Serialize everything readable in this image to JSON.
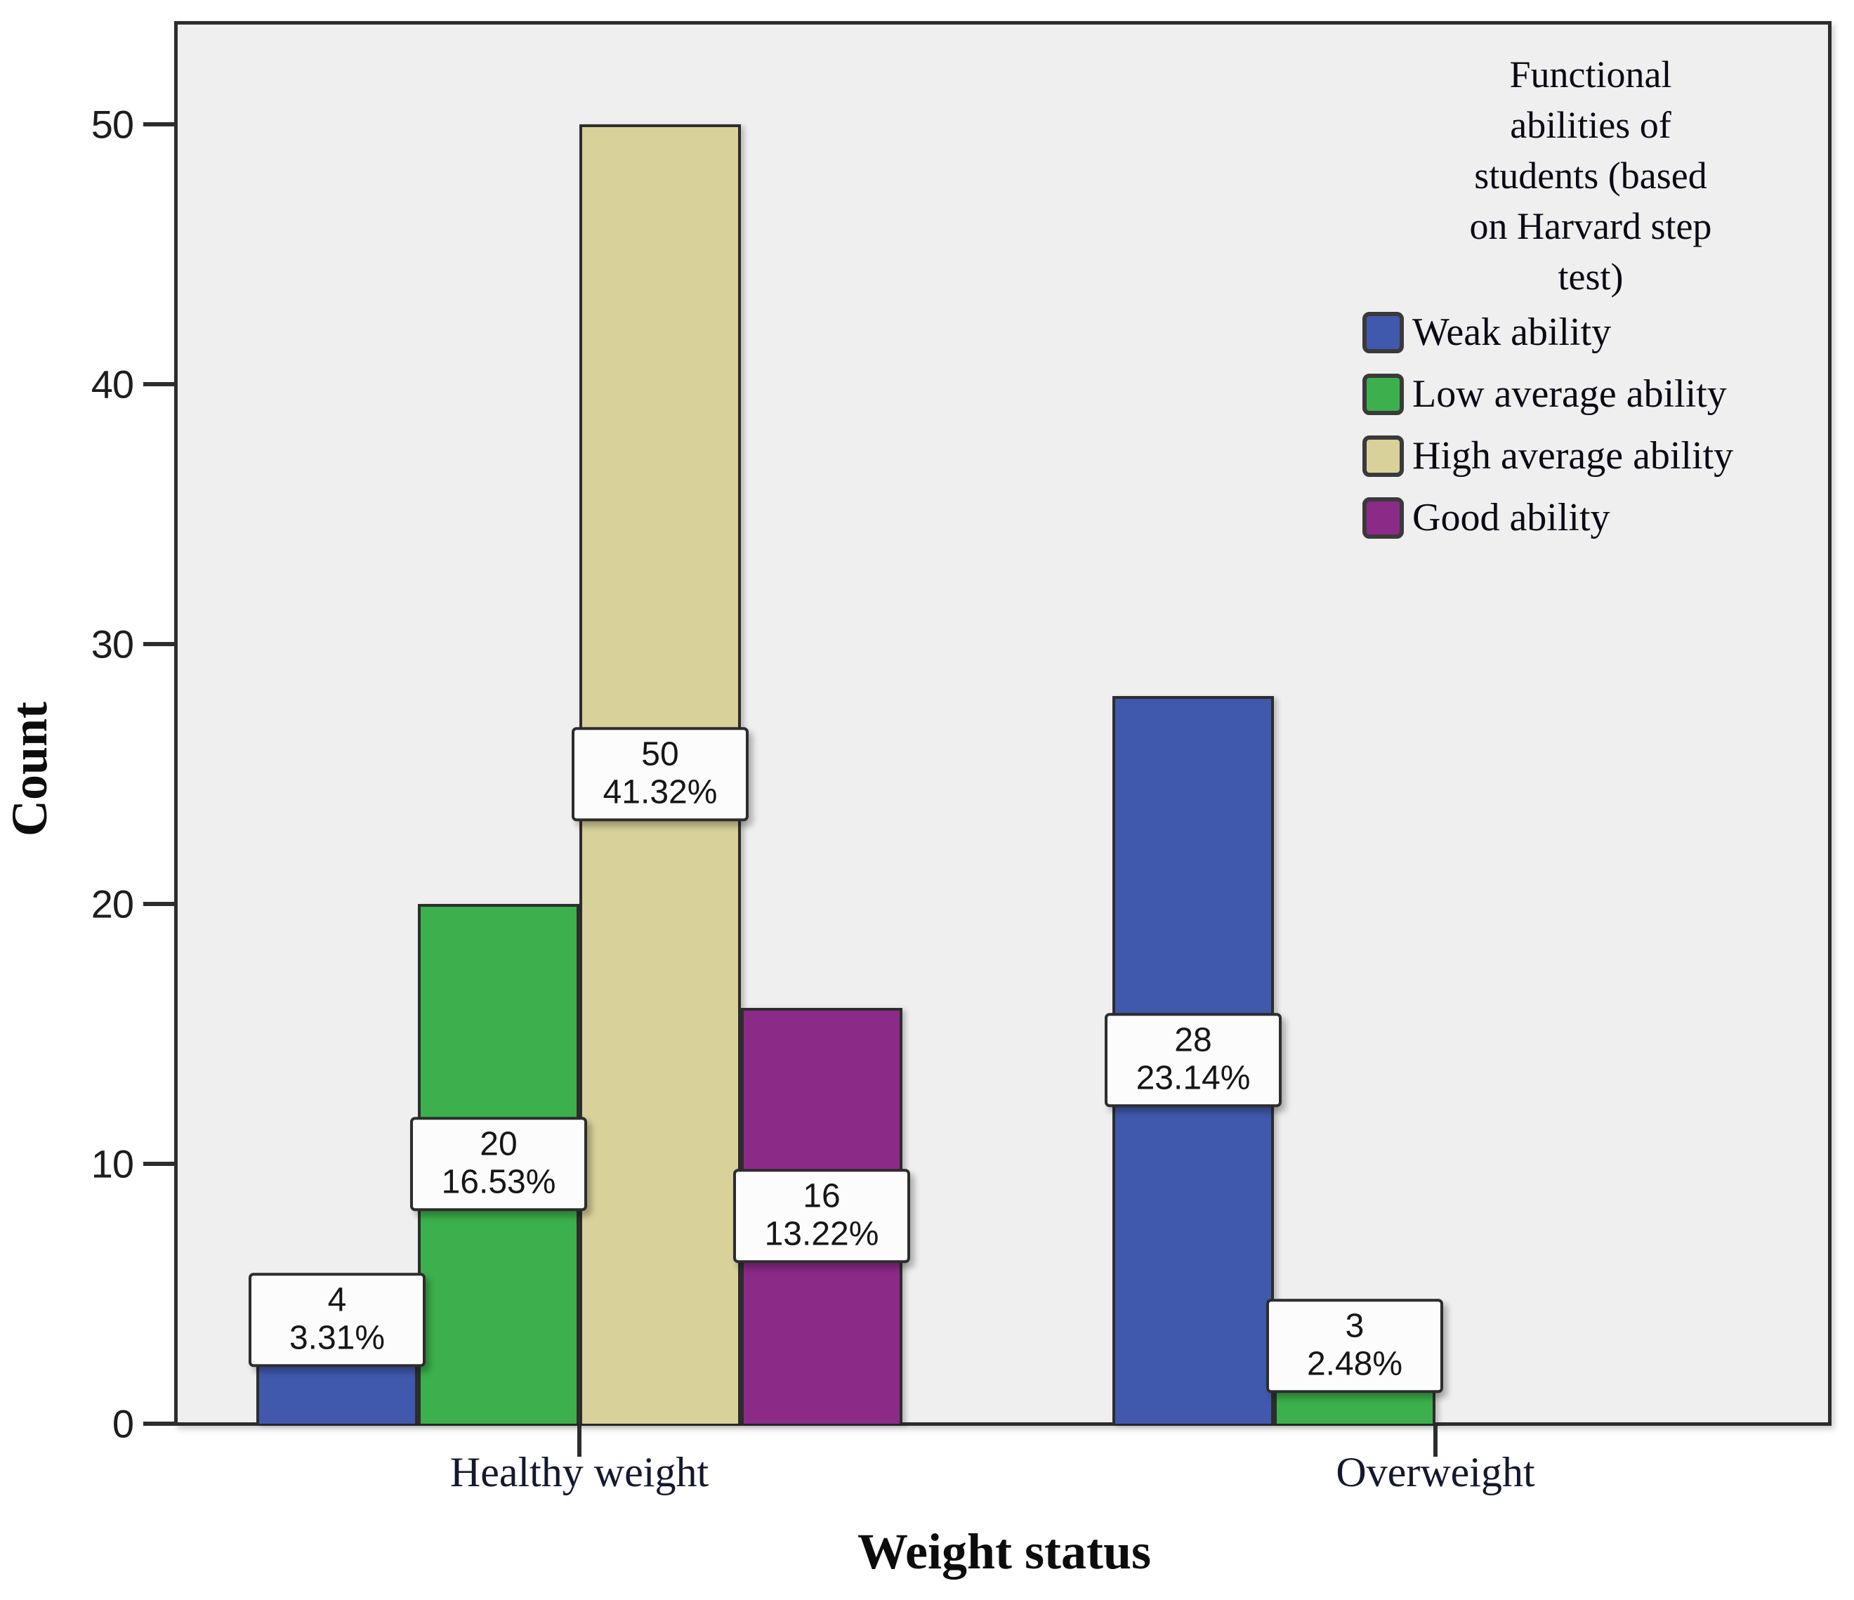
{
  "chart_data": {
    "type": "bar",
    "xlabel": "Weight status",
    "ylabel": "Count",
    "categories": [
      "Healthy weight",
      "Overweight"
    ],
    "y_ticks": [
      0,
      10,
      20,
      30,
      40,
      50
    ],
    "ylim": [
      0,
      54
    ],
    "grid": false,
    "legend": {
      "position": "top-right",
      "title_lines": [
        "Functional",
        "abilities of",
        "students (based",
        "on Harvard step",
        "test)"
      ]
    },
    "series": [
      {
        "name": "Weak ability",
        "color": "#4059ad",
        "values": [
          4,
          28
        ],
        "percent_labels": [
          "3.31%",
          "23.14%"
        ]
      },
      {
        "name": "Low average ability",
        "color": "#3cb04c",
        "values": [
          20,
          3
        ],
        "percent_labels": [
          "16.53%",
          "2.48%"
        ]
      },
      {
        "name": "High average ability",
        "color": "#d8d19a",
        "values": [
          50,
          null
        ],
        "percent_labels": [
          "41.32%",
          null
        ]
      },
      {
        "name": "Good ability",
        "color": "#8c2a88",
        "values": [
          16,
          null
        ],
        "percent_labels": [
          "13.22%",
          null
        ]
      }
    ],
    "colors": {
      "plot_background": "#efefef",
      "frame": "#2d2d2d",
      "label_box_bg": "#fcfcfc",
      "text": "#111111"
    }
  }
}
